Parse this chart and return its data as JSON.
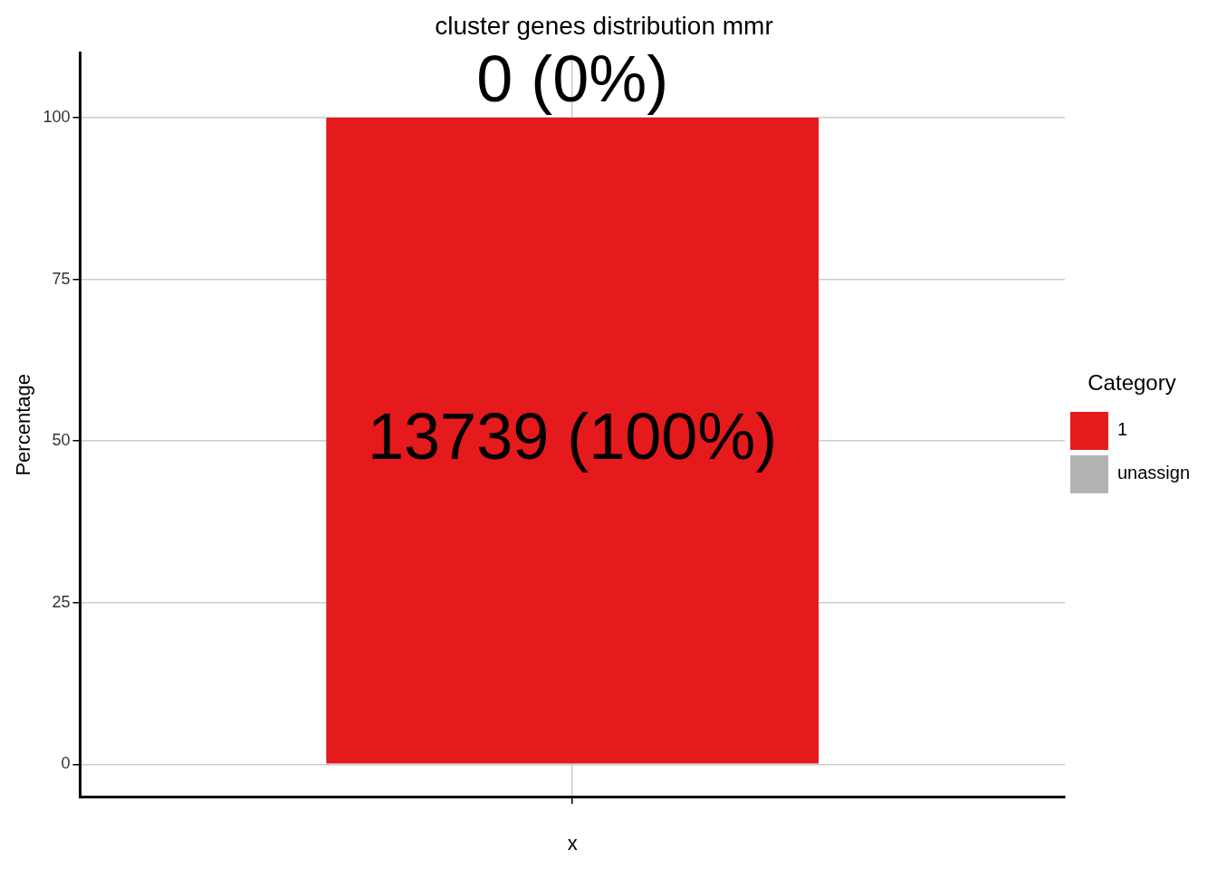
{
  "chart_data": {
    "type": "bar",
    "title": "cluster genes distribution mmr",
    "xlabel": "x",
    "ylabel": "Percentage",
    "legend_title": "Category",
    "categories": [
      null
    ],
    "stacked": true,
    "series": [
      {
        "name": "1",
        "color": "#e41a1c",
        "values": [
          100
        ],
        "value_labels": [
          "13739 (100%)"
        ]
      },
      {
        "name": "unassign",
        "color": "#b3b3b3",
        "values": [
          0
        ],
        "value_labels": [
          "0 (0%)"
        ]
      }
    ],
    "ylim": [
      -5,
      110
    ],
    "yticks": [
      0,
      25,
      50,
      75,
      100
    ],
    "grid": true,
    "legend": "right"
  }
}
